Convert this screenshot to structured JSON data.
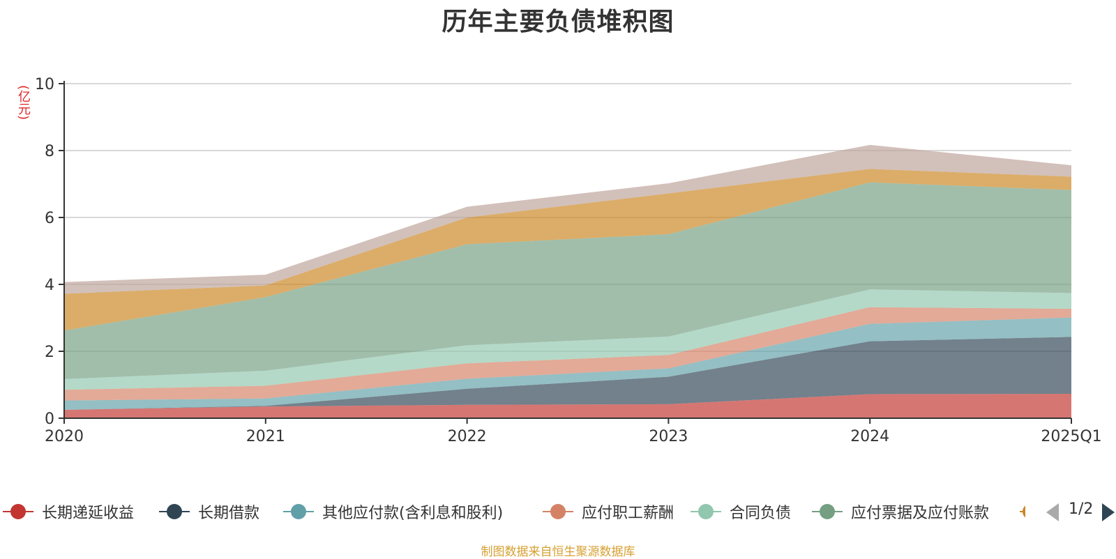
{
  "chart_data": {
    "type": "area",
    "stacked": true,
    "title": "历年主要负债堆积图",
    "ylabel": "(亿元)",
    "xlabel": "",
    "categories": [
      "2020",
      "2021",
      "2022",
      "2023",
      "2024",
      "2025Q1"
    ],
    "ylim": [
      0,
      10
    ],
    "yticks": [
      0,
      2,
      4,
      6,
      8,
      10
    ],
    "grid": true,
    "legend_position": "bottom",
    "series": [
      {
        "name": "长期递延收益",
        "color": "#c23531",
        "values": [
          0.25,
          0.35,
          0.4,
          0.42,
          0.72,
          0.73
        ]
      },
      {
        "name": "长期借款",
        "color": "#2f4554",
        "values": [
          0.0,
          0.02,
          0.48,
          0.82,
          1.58,
          1.7
        ]
      },
      {
        "name": "其他应付款(含利息和股利)",
        "color": "#61a0a8",
        "values": [
          0.28,
          0.22,
          0.3,
          0.25,
          0.52,
          0.58
        ]
      },
      {
        "name": "应付职工薪酬",
        "color": "#d48265",
        "values": [
          0.32,
          0.38,
          0.46,
          0.4,
          0.5,
          0.26
        ]
      },
      {
        "name": "合同负债",
        "color": "#91c7ae",
        "values": [
          0.32,
          0.45,
          0.54,
          0.55,
          0.53,
          0.47
        ]
      },
      {
        "name": "应付票据及应付账款",
        "color": "#749f83",
        "values": [
          1.45,
          2.2,
          3.02,
          3.06,
          3.2,
          3.08
        ]
      },
      {
        "name": "",
        "color": "#ca8622",
        "values": [
          1.1,
          0.35,
          0.8,
          1.22,
          0.4,
          0.4
        ]
      },
      {
        "name": "",
        "color": "#bda29a",
        "values": [
          0.35,
          0.32,
          0.32,
          0.3,
          0.72,
          0.34
        ]
      }
    ]
  },
  "legend": {
    "page_text": "1/2"
  },
  "source_note": "制图数据来自恒生聚源数据库"
}
